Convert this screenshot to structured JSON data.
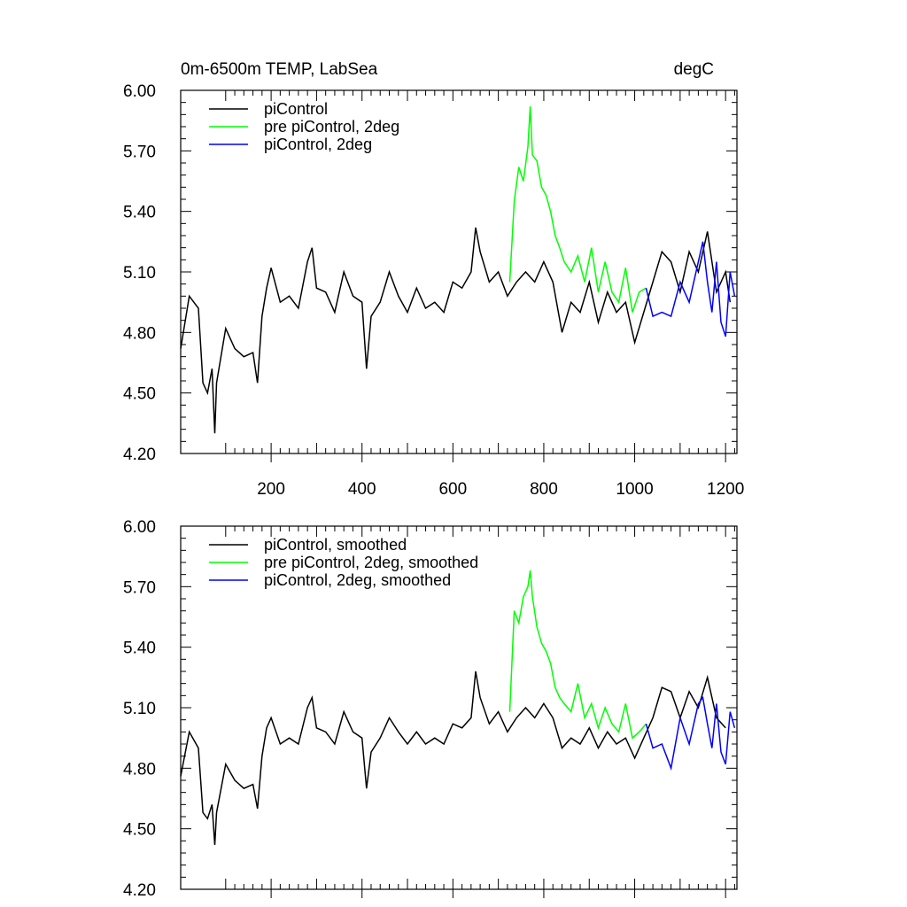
{
  "title_left": "0m-6500m TEMP, LabSea",
  "title_right": "degC",
  "chart_data": [
    {
      "type": "line",
      "title": "0m-6500m TEMP, LabSea",
      "units": "degC",
      "xlim": [
        1,
        1225
      ],
      "ylim": [
        4.2,
        6.0
      ],
      "xticks": [
        200,
        400,
        600,
        800,
        1000,
        1200
      ],
      "xtick_labels": [
        "200",
        "400",
        "600",
        "800",
        "1000",
        "1200"
      ],
      "yticks": [
        4.2,
        4.5,
        4.8,
        5.1,
        5.4,
        5.7,
        6.0
      ],
      "ytick_labels": [
        "4.20",
        "4.50",
        "4.80",
        "5.10",
        "5.40",
        "5.70",
        "6.00"
      ],
      "legend_position": "top-left",
      "series": [
        {
          "name": "piControl",
          "color": "#000000",
          "x": [
            1,
            20,
            40,
            50,
            60,
            70,
            76,
            80,
            100,
            120,
            140,
            160,
            170,
            180,
            190,
            200,
            220,
            240,
            260,
            280,
            290,
            300,
            320,
            340,
            360,
            380,
            400,
            410,
            420,
            440,
            460,
            480,
            500,
            520,
            540,
            560,
            580,
            600,
            620,
            640,
            650,
            660,
            680,
            700,
            720,
            740,
            760,
            780,
            800,
            820,
            840,
            860,
            880,
            900,
            920,
            940,
            960,
            980,
            1000,
            1020,
            1040,
            1060,
            1080,
            1100,
            1120,
            1140,
            1160,
            1180,
            1200,
            1210
          ],
          "y": [
            4.72,
            4.98,
            4.92,
            4.55,
            4.5,
            4.62,
            4.3,
            4.55,
            4.82,
            4.72,
            4.68,
            4.7,
            4.55,
            4.88,
            5.02,
            5.12,
            4.95,
            4.98,
            4.92,
            5.15,
            5.22,
            5.02,
            5.0,
            4.9,
            5.1,
            4.98,
            4.95,
            4.62,
            4.88,
            4.95,
            5.1,
            4.98,
            4.9,
            5.02,
            4.92,
            4.95,
            4.9,
            5.05,
            5.02,
            5.1,
            5.32,
            5.2,
            5.05,
            5.1,
            4.98,
            5.05,
            5.1,
            5.05,
            5.15,
            5.05,
            4.8,
            4.95,
            4.9,
            5.05,
            4.85,
            5.0,
            4.9,
            4.95,
            4.75,
            4.9,
            5.05,
            5.2,
            5.15,
            5.0,
            5.2,
            5.1,
            5.3,
            5.0,
            5.1,
            4.95
          ]
        },
        {
          "name": "pre piControl, 2deg",
          "color": "#00ff00",
          "x": [
            725,
            735,
            745,
            755,
            765,
            770,
            775,
            785,
            795,
            805,
            815,
            825,
            835,
            845,
            860,
            875,
            890,
            905,
            920,
            935,
            950,
            965,
            980,
            995,
            1010,
            1025
          ],
          "y": [
            5.05,
            5.45,
            5.62,
            5.55,
            5.72,
            5.92,
            5.68,
            5.65,
            5.52,
            5.48,
            5.4,
            5.28,
            5.22,
            5.15,
            5.1,
            5.18,
            5.05,
            5.22,
            5.0,
            5.15,
            5.0,
            4.95,
            5.12,
            4.9,
            5.0,
            5.02
          ]
        },
        {
          "name": "piControl, 2deg",
          "color": "#0000ff",
          "x": [
            1025,
            1040,
            1060,
            1080,
            1100,
            1120,
            1140,
            1150,
            1160,
            1170,
            1180,
            1190,
            1200,
            1210,
            1220
          ],
          "y": [
            5.02,
            4.88,
            4.9,
            4.88,
            5.05,
            4.95,
            5.15,
            5.25,
            5.05,
            4.9,
            5.15,
            4.85,
            4.78,
            5.1,
            4.98
          ]
        }
      ]
    },
    {
      "type": "line",
      "xlim": [
        1,
        1225
      ],
      "ylim": [
        4.2,
        6.0
      ],
      "xticks": [
        200,
        400,
        600,
        800,
        1000,
        1200
      ],
      "yticks": [
        4.2,
        4.5,
        4.8,
        5.1,
        5.4,
        5.7,
        6.0
      ],
      "ytick_labels": [
        "4.20",
        "4.50",
        "4.80",
        "5.10",
        "5.40",
        "5.70",
        "6.00"
      ],
      "legend_position": "top-left",
      "series": [
        {
          "name": "piControl, smoothed",
          "color": "#000000",
          "x": [
            1,
            20,
            40,
            50,
            60,
            70,
            76,
            80,
            100,
            120,
            140,
            160,
            170,
            180,
            190,
            200,
            220,
            240,
            260,
            280,
            290,
            300,
            320,
            340,
            360,
            380,
            400,
            410,
            420,
            440,
            460,
            480,
            500,
            520,
            540,
            560,
            580,
            600,
            620,
            640,
            650,
            660,
            680,
            700,
            720,
            740,
            760,
            780,
            800,
            820,
            840,
            860,
            880,
            900,
            920,
            940,
            960,
            980,
            1000,
            1020,
            1040,
            1060,
            1080,
            1100,
            1120,
            1140,
            1160,
            1180,
            1200
          ],
          "y": [
            4.76,
            4.98,
            4.9,
            4.58,
            4.55,
            4.62,
            4.42,
            4.58,
            4.82,
            4.74,
            4.7,
            4.72,
            4.6,
            4.86,
            5.0,
            5.05,
            4.92,
            4.95,
            4.92,
            5.1,
            5.15,
            5.0,
            4.98,
            4.92,
            5.08,
            4.98,
            4.95,
            4.7,
            4.88,
            4.95,
            5.05,
            4.98,
            4.92,
            4.98,
            4.92,
            4.95,
            4.92,
            5.02,
            5.0,
            5.05,
            5.28,
            5.15,
            5.02,
            5.08,
            4.98,
            5.05,
            5.1,
            5.05,
            5.12,
            5.05,
            4.9,
            4.95,
            4.92,
            5.0,
            4.9,
            4.98,
            4.92,
            4.95,
            4.85,
            4.95,
            5.05,
            5.2,
            5.18,
            5.05,
            5.18,
            5.1,
            5.25,
            5.05,
            5.0
          ]
        },
        {
          "name": "pre piControl, 2deg, smoothed",
          "color": "#00ff00",
          "x": [
            725,
            735,
            745,
            755,
            765,
            770,
            775,
            785,
            795,
            805,
            815,
            825,
            835,
            845,
            860,
            875,
            890,
            905,
            920,
            935,
            950,
            965,
            980,
            995,
            1010,
            1025
          ],
          "y": [
            5.08,
            5.58,
            5.52,
            5.65,
            5.7,
            5.78,
            5.65,
            5.5,
            5.42,
            5.38,
            5.32,
            5.2,
            5.15,
            5.12,
            5.08,
            5.22,
            5.05,
            5.12,
            5.0,
            5.1,
            5.02,
            4.98,
            5.12,
            4.95,
            4.98,
            5.02
          ]
        },
        {
          "name": "piControl, 2deg, smoothed",
          "color": "#0000ff",
          "x": [
            1025,
            1040,
            1060,
            1080,
            1100,
            1120,
            1140,
            1150,
            1160,
            1170,
            1180,
            1190,
            1200,
            1210,
            1220
          ],
          "y": [
            5.02,
            4.9,
            4.92,
            4.8,
            5.05,
            4.92,
            5.12,
            5.15,
            5.02,
            4.9,
            5.12,
            4.88,
            4.82,
            5.08,
            5.0
          ]
        }
      ]
    }
  ]
}
